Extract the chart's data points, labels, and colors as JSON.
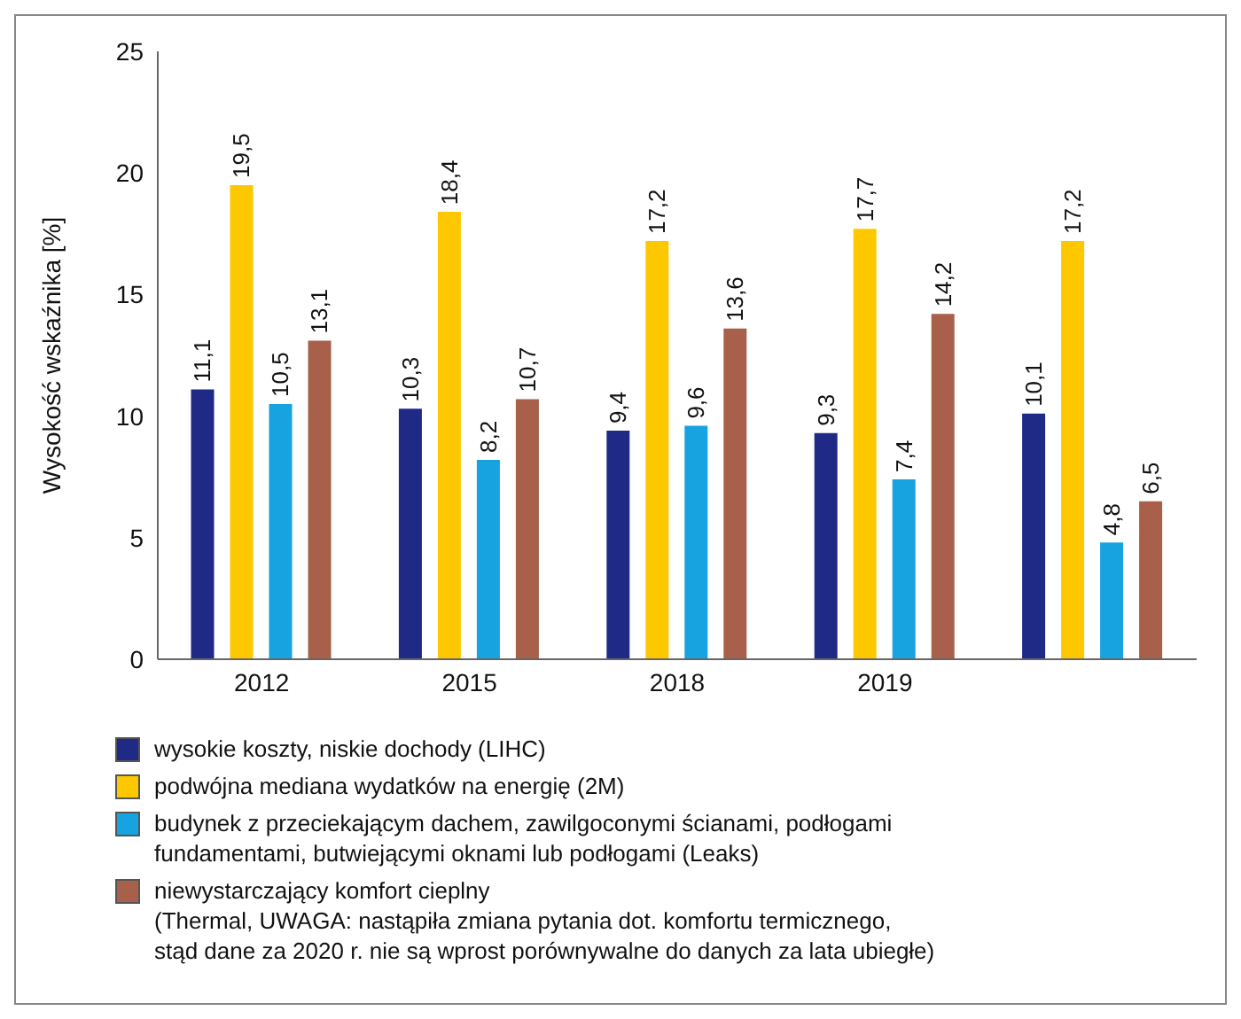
{
  "chart_data": {
    "type": "bar",
    "ylabel": "Wysokość wskaźnika [%]",
    "categories": [
      "2012",
      "2015",
      "2018",
      "2019",
      null
    ],
    "ylim": [
      0,
      25
    ],
    "yticks": [
      0,
      5,
      10,
      15,
      20,
      25
    ],
    "grid": false,
    "legend": "bottom",
    "series": [
      {
        "name": "wysokie koszty, niskie dochody (LIHC)",
        "color": "#1f2a87",
        "values": [
          11.1,
          10.3,
          9.4,
          9.3,
          10.1
        ],
        "value_labels": [
          "11,1",
          "10,3",
          "9,4",
          "9,3",
          "10,1"
        ]
      },
      {
        "name": "podwójna mediana wydatków na energię (2M)",
        "color": "#fdc800",
        "values": [
          19.5,
          18.4,
          17.2,
          17.7,
          17.2
        ],
        "value_labels": [
          "19,5",
          "18,4",
          "17,2",
          "17,7",
          "17,2"
        ]
      },
      {
        "name": "budynek z przeciekającym dachem, zawilgoconymi ścianami, podłogami\nfundamentami, butwiejącymi oknami lub podłogami (Leaks)",
        "color": "#17a2e0",
        "values": [
          10.5,
          8.2,
          9.6,
          7.4,
          4.8
        ],
        "value_labels": [
          "10,5",
          "8,2",
          "9,6",
          "7,4",
          "4,8"
        ]
      },
      {
        "name": "niewystarczający komfort cieplny\n(Thermal, UWAGA: nastąpiła zmiana pytania dot. komfortu termicznego,\nstąd dane za 2020 r. nie są wprost porównywalne do danych za lata ubiegłe)",
        "color": "#a8604a",
        "values": [
          13.1,
          10.7,
          13.6,
          14.2,
          6.5
        ],
        "value_labels": [
          "13,1",
          "10,7",
          "13,6",
          "14,2",
          "6,5"
        ]
      }
    ]
  }
}
